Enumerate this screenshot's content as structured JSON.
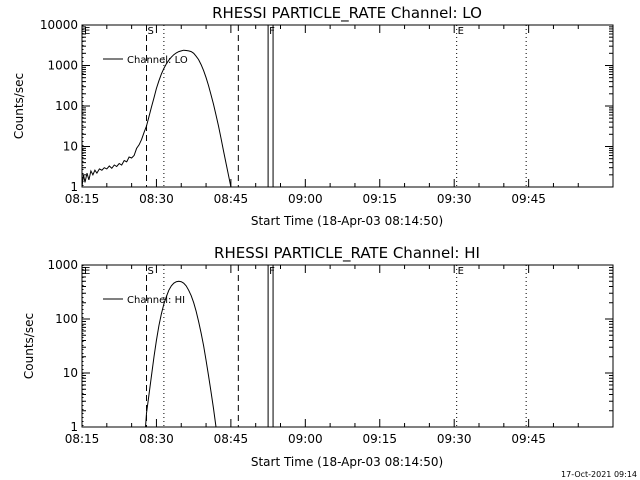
{
  "footer": {
    "timestamp": "17-Oct-2021 09:14"
  },
  "chart_data": [
    {
      "type": "line",
      "title": "RHESSI PARTICLE_RATE Channel: LO",
      "xlabel": "Start Time (18-Apr-03 08:14:50)",
      "ylabel": "Counts/sec",
      "xlim": [
        0,
        107
      ],
      "ylim": [
        1,
        10000
      ],
      "yscale": "log",
      "xticks": [
        {
          "t": 0,
          "label": "08:15"
        },
        {
          "t": 15,
          "label": "08:30"
        },
        {
          "t": 30,
          "label": "08:45"
        },
        {
          "t": 45,
          "label": "09:00"
        },
        {
          "t": 60,
          "label": "09:15"
        },
        {
          "t": 75,
          "label": "09:30"
        },
        {
          "t": 90,
          "label": "09:45"
        }
      ],
      "yticks": [
        {
          "v": 1,
          "label": "1"
        },
        {
          "v": 10,
          "label": "10"
        },
        {
          "v": 100,
          "label": "100"
        },
        {
          "v": 1000,
          "label": "1000"
        },
        {
          "v": 10000,
          "label": "10000"
        }
      ],
      "legend": {
        "label": "Channel: LO",
        "position": "top-left"
      },
      "markers": [
        {
          "t": 0.2,
          "label": "E",
          "style": "dotted"
        },
        {
          "t": 13,
          "label": "S",
          "style": "dashed"
        },
        {
          "t": 16.5,
          "label": "",
          "style": "dotted"
        },
        {
          "t": 31.5,
          "label": "",
          "style": "dashed"
        },
        {
          "t": 37.5,
          "label": "F",
          "style": "solid"
        },
        {
          "t": 38.5,
          "label": "",
          "style": "solid"
        },
        {
          "t": 75.5,
          "label": "E",
          "style": "dotted"
        },
        {
          "t": 89.5,
          "label": "",
          "style": "dotted"
        }
      ],
      "series": [
        {
          "name": "Channel: LO",
          "points": [
            [
              0,
              1
            ],
            [
              0.3,
              2
            ],
            [
              0.6,
              1.3
            ],
            [
              1,
              2.2
            ],
            [
              1.4,
              1.5
            ],
            [
              1.8,
              2.5
            ],
            [
              2.2,
              2
            ],
            [
              2.6,
              2.6
            ],
            [
              3,
              2.2
            ],
            [
              3.5,
              2.8
            ],
            [
              4,
              2.6
            ],
            [
              4.5,
              3
            ],
            [
              5,
              2.8
            ],
            [
              5.5,
              3.3
            ],
            [
              6,
              2.9
            ],
            [
              6.5,
              3.5
            ],
            [
              7,
              3.2
            ],
            [
              7.5,
              3.8
            ],
            [
              8,
              3.5
            ],
            [
              8.5,
              4.5
            ],
            [
              9,
              4.2
            ],
            [
              9.5,
              5.5
            ],
            [
              10,
              5.2
            ],
            [
              10.5,
              6
            ],
            [
              11,
              9
            ],
            [
              11.5,
              11
            ],
            [
              12,
              15
            ],
            [
              12.5,
              22
            ],
            [
              13,
              32
            ],
            [
              13.5,
              55
            ],
            [
              14,
              95
            ],
            [
              14.5,
              160
            ],
            [
              15,
              270
            ],
            [
              15.5,
              420
            ],
            [
              16,
              620
            ],
            [
              16.5,
              850
            ],
            [
              17,
              1100
            ],
            [
              17.5,
              1350
            ],
            [
              18,
              1600
            ],
            [
              18.5,
              1850
            ],
            [
              19,
              2050
            ],
            [
              19.5,
              2200
            ],
            [
              20,
              2300
            ],
            [
              20.5,
              2380
            ],
            [
              21,
              2350
            ],
            [
              21.5,
              2300
            ],
            [
              22,
              2200
            ],
            [
              22.5,
              2000
            ],
            [
              23,
              1700
            ],
            [
              23.5,
              1400
            ],
            [
              24,
              1050
            ],
            [
              24.5,
              750
            ],
            [
              25,
              500
            ],
            [
              25.5,
              320
            ],
            [
              26,
              190
            ],
            [
              26.5,
              110
            ],
            [
              27,
              60
            ],
            [
              27.5,
              32
            ],
            [
              28,
              16
            ],
            [
              28.5,
              8
            ],
            [
              29,
              4
            ],
            [
              29.5,
              2
            ],
            [
              30,
              1
            ]
          ]
        }
      ]
    },
    {
      "type": "line",
      "title": "RHESSI PARTICLE_RATE Channel: HI",
      "xlabel": "Start Time (18-Apr-03 08:14:50)",
      "ylabel": "Counts/sec",
      "xlim": [
        0,
        107
      ],
      "ylim": [
        1,
        1000
      ],
      "yscale": "log",
      "xticks": [
        {
          "t": 0,
          "label": "08:15"
        },
        {
          "t": 15,
          "label": "08:30"
        },
        {
          "t": 30,
          "label": "08:45"
        },
        {
          "t": 45,
          "label": "09:00"
        },
        {
          "t": 60,
          "label": "09:15"
        },
        {
          "t": 75,
          "label": "09:30"
        },
        {
          "t": 90,
          "label": "09:45"
        }
      ],
      "yticks": [
        {
          "v": 1,
          "label": "1"
        },
        {
          "v": 10,
          "label": "10"
        },
        {
          "v": 100,
          "label": "100"
        },
        {
          "v": 1000,
          "label": "1000"
        }
      ],
      "legend": {
        "label": "Channel: HI",
        "position": "top-left"
      },
      "markers": [
        {
          "t": 0.2,
          "label": "E",
          "style": "dotted"
        },
        {
          "t": 13,
          "label": "S",
          "style": "dashed"
        },
        {
          "t": 16.5,
          "label": "",
          "style": "dotted"
        },
        {
          "t": 31.5,
          "label": "",
          "style": "dashed"
        },
        {
          "t": 37.5,
          "label": "F",
          "style": "solid"
        },
        {
          "t": 38.5,
          "label": "",
          "style": "solid"
        },
        {
          "t": 75.5,
          "label": "E",
          "style": "dotted"
        },
        {
          "t": 89.5,
          "label": "",
          "style": "dotted"
        }
      ],
      "series": [
        {
          "name": "Channel: HI",
          "points": [
            [
              12.8,
              1
            ],
            [
              13,
              1.8
            ],
            [
              13.5,
              4
            ],
            [
              14,
              9
            ],
            [
              14.5,
              20
            ],
            [
              15,
              40
            ],
            [
              15.5,
              75
            ],
            [
              16,
              125
            ],
            [
              16.5,
              190
            ],
            [
              17,
              260
            ],
            [
              17.5,
              340
            ],
            [
              18,
              410
            ],
            [
              18.5,
              460
            ],
            [
              19,
              490
            ],
            [
              19.5,
              500
            ],
            [
              20,
              490
            ],
            [
              20.5,
              460
            ],
            [
              21,
              410
            ],
            [
              21.5,
              340
            ],
            [
              22,
              270
            ],
            [
              22.5,
              200
            ],
            [
              23,
              140
            ],
            [
              23.5,
              90
            ],
            [
              24,
              55
            ],
            [
              24.5,
              32
            ],
            [
              25,
              17
            ],
            [
              25.5,
              9
            ],
            [
              26,
              4.5
            ],
            [
              26.5,
              2.2
            ],
            [
              27,
              1
            ]
          ]
        }
      ]
    }
  ]
}
